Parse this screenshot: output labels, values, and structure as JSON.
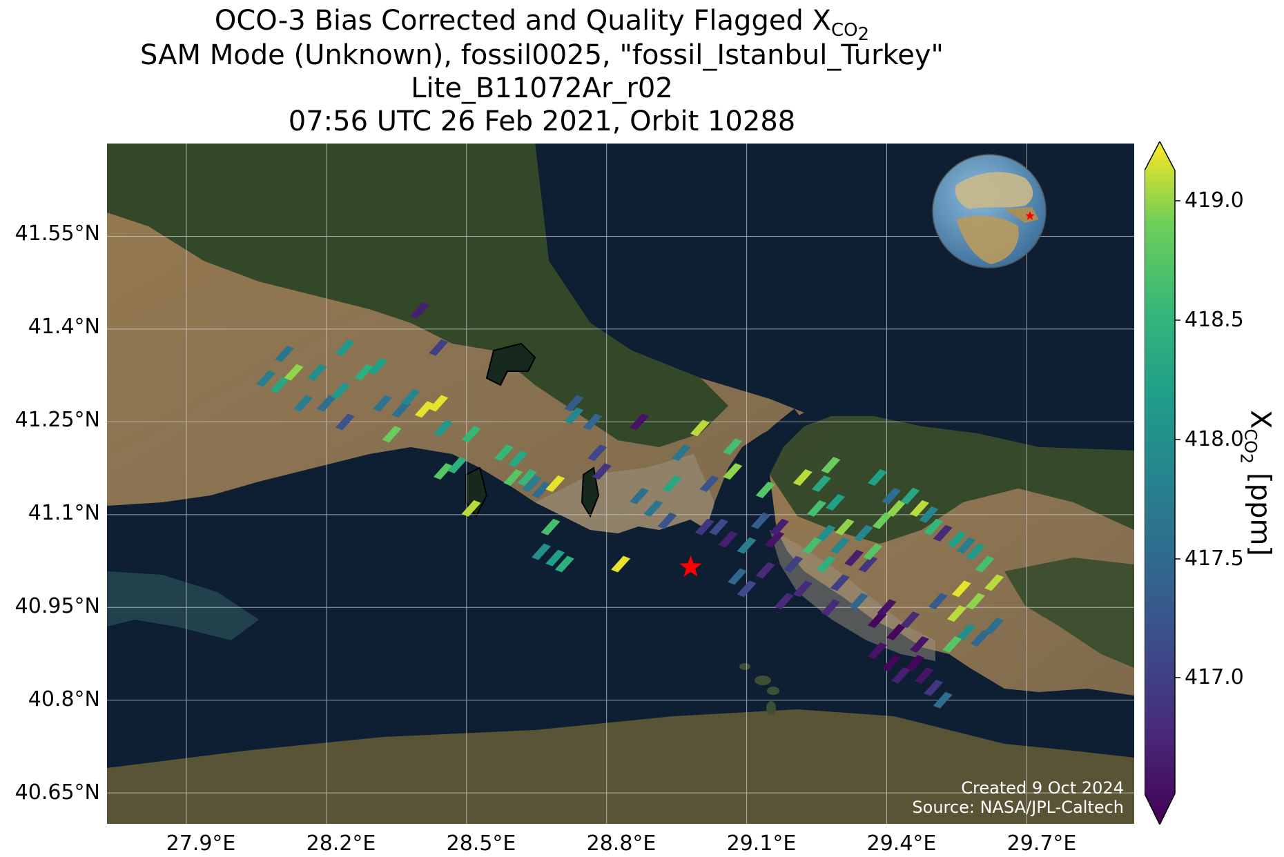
{
  "title": {
    "line1_prefix": "OCO-3 Bias Corrected and Quality Flagged X",
    "line1_sub": "CO",
    "line1_subsub": "2",
    "line2": "SAM Mode (Unknown), fossil0025, \"fossil_Istanbul_Turkey\"",
    "line3": "Lite_B11072Ar_r02",
    "line4": "07:56 UTC 26 Feb 2021, Orbit 10288"
  },
  "map": {
    "lon_range": [
      27.73,
      29.93
    ],
    "lat_range": [
      40.6,
      41.7
    ],
    "lat_ticks": [
      "41.55°N",
      "41.4°N",
      "41.25°N",
      "41.1°N",
      "40.95°N",
      "40.8°N",
      "40.65°N"
    ],
    "lon_ticks": [
      "27.9°E",
      "28.2°E",
      "28.5°E",
      "28.8°E",
      "29.1°E",
      "29.4°E",
      "29.7°E"
    ],
    "target_marker": {
      "lon": 28.98,
      "lat": 41.015,
      "color": "#ff0000",
      "symbol": "star"
    },
    "colors": {
      "sea": "#0e1f33",
      "land": "#8a7350",
      "forest": "#2e4527",
      "grid": "#cccccc"
    }
  },
  "inset_globe": {
    "center": "Europe / Mediterranean",
    "marker": "red star over Turkey"
  },
  "colorbar": {
    "label_prefix": "X",
    "label_sub": "CO",
    "label_subsub": "2",
    "label_suffix": " [ppm]",
    "ticks": [
      "419.0",
      "418.5",
      "418.0",
      "417.5",
      "417.0"
    ],
    "range": [
      416.55,
      419.15
    ],
    "colormap": "viridis"
  },
  "footprints": [
    {
      "lon": 28.07,
      "lat": 41.32,
      "xco2": 417.8
    },
    {
      "lon": 28.1,
      "lat": 41.31,
      "xco2": 418.3
    },
    {
      "lon": 28.13,
      "lat": 41.33,
      "xco2": 418.9
    },
    {
      "lon": 28.11,
      "lat": 41.36,
      "xco2": 417.7
    },
    {
      "lon": 28.15,
      "lat": 41.28,
      "xco2": 417.8
    },
    {
      "lon": 28.18,
      "lat": 41.33,
      "xco2": 418.0
    },
    {
      "lon": 28.2,
      "lat": 41.28,
      "xco2": 417.6
    },
    {
      "lon": 28.23,
      "lat": 41.3,
      "xco2": 418.1
    },
    {
      "lon": 28.24,
      "lat": 41.37,
      "xco2": 418.1
    },
    {
      "lon": 28.28,
      "lat": 41.33,
      "xco2": 418.4
    },
    {
      "lon": 28.31,
      "lat": 41.34,
      "xco2": 418.2
    },
    {
      "lon": 28.24,
      "lat": 41.25,
      "xco2": 417.3
    },
    {
      "lon": 28.32,
      "lat": 41.28,
      "xco2": 417.7
    },
    {
      "lon": 28.36,
      "lat": 41.27,
      "xco2": 417.6
    },
    {
      "lon": 28.38,
      "lat": 41.29,
      "xco2": 417.9
    },
    {
      "lon": 28.34,
      "lat": 41.23,
      "xco2": 418.8
    },
    {
      "lon": 28.41,
      "lat": 41.27,
      "xco2": 419.1
    },
    {
      "lon": 28.44,
      "lat": 41.28,
      "xco2": 419.1
    },
    {
      "lon": 28.4,
      "lat": 41.43,
      "xco2": 416.8
    },
    {
      "lon": 28.44,
      "lat": 41.37,
      "xco2": 417.1
    },
    {
      "lon": 28.45,
      "lat": 41.24,
      "xco2": 418.1
    },
    {
      "lon": 28.51,
      "lat": 41.23,
      "xco2": 418.5
    },
    {
      "lon": 28.45,
      "lat": 41.17,
      "xco2": 418.7
    },
    {
      "lon": 28.48,
      "lat": 41.18,
      "xco2": 418.4
    },
    {
      "lon": 28.51,
      "lat": 41.11,
      "xco2": 419.0
    },
    {
      "lon": 28.58,
      "lat": 41.2,
      "xco2": 418.5
    },
    {
      "lon": 28.61,
      "lat": 41.19,
      "xco2": 418.3
    },
    {
      "lon": 28.6,
      "lat": 41.16,
      "xco2": 418.7
    },
    {
      "lon": 28.63,
      "lat": 41.16,
      "xco2": 418.5
    },
    {
      "lon": 28.64,
      "lat": 41.15,
      "xco2": 417.8
    },
    {
      "lon": 28.66,
      "lat": 41.14,
      "xco2": 417.6
    },
    {
      "lon": 28.69,
      "lat": 41.15,
      "xco2": 419.1
    },
    {
      "lon": 28.68,
      "lat": 41.08,
      "xco2": 418.6
    },
    {
      "lon": 28.66,
      "lat": 41.04,
      "xco2": 418.0
    },
    {
      "lon": 28.69,
      "lat": 41.03,
      "xco2": 418.2
    },
    {
      "lon": 28.71,
      "lat": 41.02,
      "xco2": 418.4
    },
    {
      "lon": 28.73,
      "lat": 41.28,
      "xco2": 417.4
    },
    {
      "lon": 28.73,
      "lat": 41.26,
      "xco2": 417.9
    },
    {
      "lon": 28.77,
      "lat": 41.25,
      "xco2": 417.5
    },
    {
      "lon": 28.78,
      "lat": 41.2,
      "xco2": 417.2
    },
    {
      "lon": 28.79,
      "lat": 41.17,
      "xco2": 417.0
    },
    {
      "lon": 28.83,
      "lat": 41.02,
      "xco2": 419.1
    },
    {
      "lon": 28.87,
      "lat": 41.25,
      "xco2": 416.7
    },
    {
      "lon": 28.87,
      "lat": 41.13,
      "xco2": 417.6
    },
    {
      "lon": 28.9,
      "lat": 41.11,
      "xco2": 417.7
    },
    {
      "lon": 28.93,
      "lat": 41.09,
      "xco2": 417.3
    },
    {
      "lon": 28.94,
      "lat": 41.15,
      "xco2": 418.3
    },
    {
      "lon": 28.96,
      "lat": 41.2,
      "xco2": 417.7
    },
    {
      "lon": 29.0,
      "lat": 41.24,
      "xco2": 419.0
    },
    {
      "lon": 29.02,
      "lat": 41.15,
      "xco2": 417.3
    },
    {
      "lon": 29.01,
      "lat": 41.08,
      "xco2": 417.0
    },
    {
      "lon": 29.04,
      "lat": 41.08,
      "xco2": 417.2
    },
    {
      "lon": 29.07,
      "lat": 41.17,
      "xco2": 418.9
    },
    {
      "lon": 29.07,
      "lat": 41.21,
      "xco2": 418.6
    },
    {
      "lon": 29.06,
      "lat": 41.06,
      "xco2": 416.8
    },
    {
      "lon": 29.1,
      "lat": 41.05,
      "xco2": 417.8
    },
    {
      "lon": 29.08,
      "lat": 41.0,
      "xco2": 417.5
    },
    {
      "lon": 29.1,
      "lat": 40.98,
      "xco2": 417.2
    },
    {
      "lon": 29.14,
      "lat": 41.14,
      "xco2": 418.7
    },
    {
      "lon": 29.13,
      "lat": 41.09,
      "xco2": 417.4
    },
    {
      "lon": 29.14,
      "lat": 41.01,
      "xco2": 416.9
    },
    {
      "lon": 29.16,
      "lat": 41.06,
      "xco2": 416.7
    },
    {
      "lon": 29.17,
      "lat": 41.08,
      "xco2": 416.8
    },
    {
      "lon": 29.18,
      "lat": 40.96,
      "xco2": 416.9
    },
    {
      "lon": 29.2,
      "lat": 41.02,
      "xco2": 417.1
    },
    {
      "lon": 29.22,
      "lat": 40.98,
      "xco2": 416.9
    },
    {
      "lon": 29.22,
      "lat": 41.16,
      "xco2": 419.0
    },
    {
      "lon": 29.25,
      "lat": 41.11,
      "xco2": 418.6
    },
    {
      "lon": 29.27,
      "lat": 41.07,
      "xco2": 418.0
    },
    {
      "lon": 29.24,
      "lat": 41.05,
      "xco2": 418.6
    },
    {
      "lon": 29.26,
      "lat": 41.15,
      "xco2": 418.3
    },
    {
      "lon": 29.28,
      "lat": 41.18,
      "xco2": 418.8
    },
    {
      "lon": 29.29,
      "lat": 41.12,
      "xco2": 418.2
    },
    {
      "lon": 29.31,
      "lat": 41.08,
      "xco2": 418.9
    },
    {
      "lon": 29.27,
      "lat": 41.02,
      "xco2": 418.4
    },
    {
      "lon": 29.3,
      "lat": 41.05,
      "xco2": 417.9
    },
    {
      "lon": 29.3,
      "lat": 40.99,
      "xco2": 417.1
    },
    {
      "lon": 29.33,
      "lat": 41.03,
      "xco2": 416.8
    },
    {
      "lon": 29.28,
      "lat": 40.95,
      "xco2": 416.9
    },
    {
      "lon": 29.34,
      "lat": 40.96,
      "xco2": 417.5
    },
    {
      "lon": 29.36,
      "lat": 41.02,
      "xco2": 417.0
    },
    {
      "lon": 29.35,
      "lat": 41.07,
      "xco2": 417.9
    },
    {
      "lon": 29.37,
      "lat": 41.04,
      "xco2": 418.7
    },
    {
      "lon": 29.39,
      "lat": 41.09,
      "xco2": 418.8
    },
    {
      "lon": 29.38,
      "lat": 41.16,
      "xco2": 418.2
    },
    {
      "lon": 29.41,
      "lat": 41.13,
      "xco2": 417.6
    },
    {
      "lon": 29.42,
      "lat": 41.11,
      "xco2": 418.9
    },
    {
      "lon": 29.45,
      "lat": 41.13,
      "xco2": 418.3
    },
    {
      "lon": 29.47,
      "lat": 41.11,
      "xco2": 419.0
    },
    {
      "lon": 29.49,
      "lat": 41.1,
      "xco2": 417.9
    },
    {
      "lon": 29.5,
      "lat": 41.08,
      "xco2": 418.5
    },
    {
      "lon": 29.52,
      "lat": 41.07,
      "xco2": 416.9
    },
    {
      "lon": 29.55,
      "lat": 41.06,
      "xco2": 418.2
    },
    {
      "lon": 29.57,
      "lat": 41.05,
      "xco2": 417.8
    },
    {
      "lon": 29.59,
      "lat": 41.04,
      "xco2": 418.1
    },
    {
      "lon": 29.61,
      "lat": 41.02,
      "xco2": 418.6
    },
    {
      "lon": 29.63,
      "lat": 40.99,
      "xco2": 419.0
    },
    {
      "lon": 29.56,
      "lat": 40.98,
      "xco2": 419.1
    },
    {
      "lon": 29.59,
      "lat": 40.96,
      "xco2": 418.9
    },
    {
      "lon": 29.55,
      "lat": 40.94,
      "xco2": 419.0
    },
    {
      "lon": 29.51,
      "lat": 40.96,
      "xco2": 417.4
    },
    {
      "lon": 29.57,
      "lat": 40.91,
      "xco2": 418.0
    },
    {
      "lon": 29.6,
      "lat": 40.9,
      "xco2": 417.5
    },
    {
      "lon": 29.63,
      "lat": 40.92,
      "xco2": 417.6
    },
    {
      "lon": 29.54,
      "lat": 40.89,
      "xco2": 418.7
    },
    {
      "lon": 29.38,
      "lat": 40.93,
      "xco2": 416.6
    },
    {
      "lon": 29.4,
      "lat": 40.95,
      "xco2": 416.7
    },
    {
      "lon": 29.42,
      "lat": 40.91,
      "xco2": 416.6
    },
    {
      "lon": 29.45,
      "lat": 40.93,
      "xco2": 416.9
    },
    {
      "lon": 29.47,
      "lat": 40.89,
      "xco2": 416.7
    },
    {
      "lon": 29.38,
      "lat": 40.88,
      "xco2": 416.7
    },
    {
      "lon": 29.41,
      "lat": 40.86,
      "xco2": 416.6
    },
    {
      "lon": 29.46,
      "lat": 40.86,
      "xco2": 416.6
    },
    {
      "lon": 29.48,
      "lat": 40.84,
      "xco2": 416.7
    },
    {
      "lon": 29.5,
      "lat": 40.82,
      "xco2": 417.0
    },
    {
      "lon": 29.52,
      "lat": 40.8,
      "xco2": 417.6
    },
    {
      "lon": 29.43,
      "lat": 40.84,
      "xco2": 416.8
    }
  ],
  "credit": {
    "line1": "Created 9 Oct 2024",
    "line2": "Source: NASA/JPL-Caltech"
  }
}
